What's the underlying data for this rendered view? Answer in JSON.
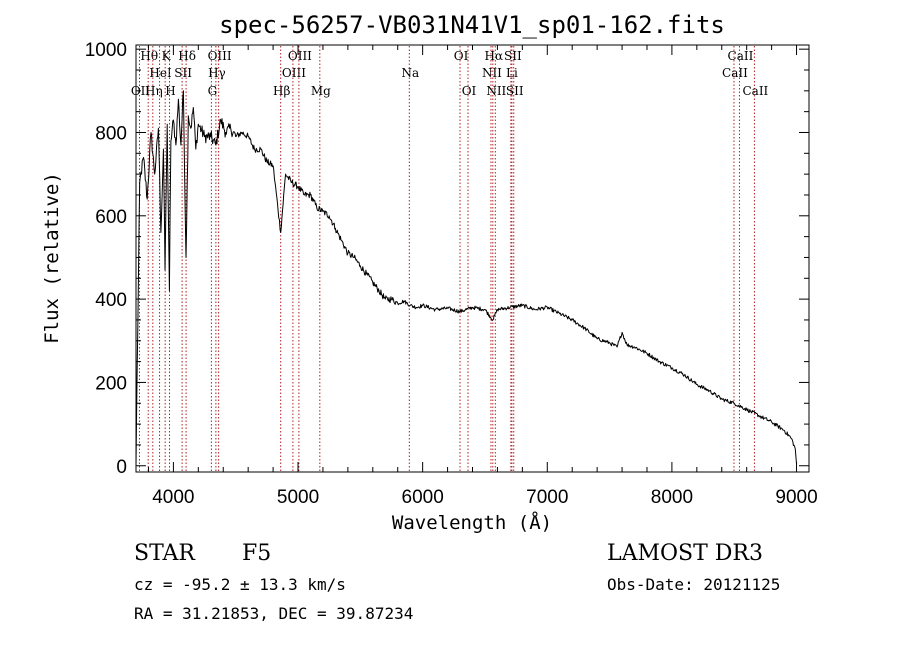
{
  "chart_data": {
    "type": "line",
    "title": "spec-56257-VB031N41V1_sp01-162.fits",
    "xlabel": "Wavelength (Å)",
    "ylabel": "Flux (relative)",
    "xlim": [
      3700,
      9100
    ],
    "ylim": [
      -15,
      1010
    ],
    "xticks": [
      4000,
      5000,
      6000,
      7000,
      8000,
      9000
    ],
    "yticks": [
      0,
      200,
      400,
      600,
      800,
      1000
    ],
    "series": [
      {
        "name": "spectrum",
        "x": [
          3700,
          3710,
          3730,
          3760,
          3790,
          3820,
          3850,
          3880,
          3900,
          3920,
          3933,
          3950,
          3968,
          3980,
          4000,
          4020,
          4040,
          4060,
          4080,
          4101,
          4120,
          4140,
          4160,
          4180,
          4200,
          4250,
          4300,
          4340,
          4380,
          4420,
          4460,
          4500,
          4550,
          4600,
          4650,
          4700,
          4750,
          4800,
          4861,
          4900,
          4950,
          5000,
          5050,
          5100,
          5150,
          5200,
          5250,
          5300,
          5350,
          5400,
          5450,
          5500,
          5550,
          5600,
          5650,
          5700,
          5750,
          5800,
          5850,
          5900,
          5950,
          6000,
          6100,
          6200,
          6300,
          6400,
          6500,
          6563,
          6600,
          6700,
          6800,
          6900,
          7000,
          7100,
          7200,
          7300,
          7400,
          7500,
          7560,
          7600,
          7640,
          7700,
          7800,
          7900,
          8000,
          8100,
          8200,
          8300,
          8400,
          8500,
          8600,
          8700,
          8800,
          8900,
          8960,
          8990,
          9000
        ],
        "y": [
          0,
          240,
          680,
          740,
          640,
          800,
          700,
          810,
          560,
          760,
          470,
          820,
          420,
          780,
          830,
          770,
          880,
          770,
          900,
          500,
          840,
          810,
          860,
          760,
          820,
          790,
          790,
          770,
          830,
          800,
          810,
          790,
          800,
          790,
          760,
          760,
          730,
          720,
          560,
          700,
          680,
          670,
          650,
          650,
          620,
          610,
          600,
          570,
          540,
          510,
          500,
          480,
          460,
          440,
          420,
          400,
          400,
          390,
          395,
          385,
          380,
          385,
          375,
          378,
          370,
          380,
          375,
          350,
          375,
          380,
          385,
          375,
          380,
          365,
          350,
          330,
          305,
          295,
          285,
          320,
          290,
          285,
          270,
          250,
          235,
          218,
          195,
          180,
          160,
          150,
          135,
          120,
          105,
          85,
          65,
          40,
          5
        ]
      }
    ],
    "lines": [
      {
        "name": "OII",
        "wl": 3728,
        "label": "OII",
        "row": 2
      },
      {
        "name": "Htheta",
        "wl": 3798,
        "label": "Hθ",
        "row": 0
      },
      {
        "name": "Heta",
        "wl": 3835,
        "label": "Hη",
        "row": 2
      },
      {
        "name": "CaK",
        "wl": 3934,
        "label": "K",
        "row": 0
      },
      {
        "name": "HeI",
        "wl": 3889,
        "label": "HeI",
        "row": 1
      },
      {
        "name": "CaH",
        "wl": 3969,
        "label": "H",
        "row": 2
      },
      {
        "name": "SII",
        "wl": 4070,
        "label": "SII",
        "row": 1
      },
      {
        "name": "Hdelta",
        "wl": 4102,
        "label": "Hδ",
        "row": 0
      },
      {
        "name": "Hgamma",
        "wl": 4341,
        "label": "Hγ",
        "row": 1
      },
      {
        "name": "Gband",
        "wl": 4305,
        "label": "G",
        "row": 2
      },
      {
        "name": "OIII_4363",
        "wl": 4363,
        "label": "OIII",
        "row": 0
      },
      {
        "name": "Hbeta",
        "wl": 4861,
        "label": "Hβ",
        "row": 2
      },
      {
        "name": "OIII_4959",
        "wl": 4959,
        "label": "OIII",
        "row": 1
      },
      {
        "name": "OIII_5007",
        "wl": 5007,
        "label": "OIII",
        "row": 0
      },
      {
        "name": "Mg",
        "wl": 5175,
        "label": "Mg",
        "row": 2
      },
      {
        "name": "Na",
        "wl": 5893,
        "label": "Na",
        "row": 1
      },
      {
        "name": "OI_6300",
        "wl": 6300,
        "label": "OI",
        "row": 0
      },
      {
        "name": "OI_6364",
        "wl": 6364,
        "label": "OI",
        "row": 2
      },
      {
        "name": "NII_6548",
        "wl": 6548,
        "label": "NII",
        "row": 1
      },
      {
        "name": "Halpha",
        "wl": 6563,
        "label": "Hα",
        "row": 0
      },
      {
        "name": "NII_6583",
        "wl": 6583,
        "label": "NII",
        "row": 2
      },
      {
        "name": "Li",
        "wl": 6708,
        "label": "Li",
        "row": 1
      },
      {
        "name": "SII_6716",
        "wl": 6716,
        "label": "SII",
        "row": 0
      },
      {
        "name": "SII_6731",
        "wl": 6731,
        "label": "SII",
        "row": 2
      },
      {
        "name": "CaII_8498",
        "wl": 8498,
        "label": "CaII",
        "row": 1
      },
      {
        "name": "CaII_8542",
        "wl": 8542,
        "label": "CaII",
        "row": 0
      },
      {
        "name": "CaII_8662",
        "wl": 8662,
        "label": "CaII",
        "row": 2
      }
    ],
    "line_color": "#b22222"
  },
  "info": {
    "object_class": "STAR",
    "subclass": "F5",
    "survey": "LAMOST DR3",
    "redshift": "cz = -95.2 ± 13.3 km/s",
    "obs_date": "Obs-Date: 20121125",
    "coords": "RA =  31.21853, DEC =  39.87234"
  }
}
